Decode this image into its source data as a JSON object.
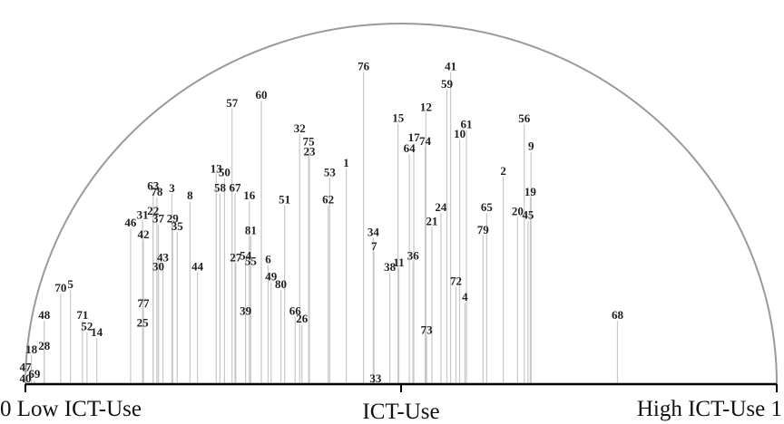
{
  "chart_data": {
    "type": "semicircle-stem",
    "title": "",
    "x_axis": {
      "left_label": "0 Low ICT-Use",
      "center_label": "ICT-Use",
      "right_label": "High ICT-Use 1",
      "min": 0,
      "max": 1
    },
    "y_axis": {
      "min": 0,
      "max": 1
    },
    "colors": {
      "stem": "#c8c8c8",
      "arc": "#9a9a9a",
      "axis": "#000000",
      "label": "#222222"
    },
    "points": [
      {
        "id": "40",
        "x": 0.0,
        "y": 0.0
      },
      {
        "id": "47",
        "x": 0.0,
        "y": 0.032
      },
      {
        "id": "69",
        "x": 0.012,
        "y": 0.012
      },
      {
        "id": "18",
        "x": 0.008,
        "y": 0.08
      },
      {
        "id": "28",
        "x": 0.025,
        "y": 0.09
      },
      {
        "id": "48",
        "x": 0.025,
        "y": 0.176
      },
      {
        "id": "70",
        "x": 0.047,
        "y": 0.251
      },
      {
        "id": "5",
        "x": 0.06,
        "y": 0.261
      },
      {
        "id": "71",
        "x": 0.076,
        "y": 0.176
      },
      {
        "id": "52",
        "x": 0.082,
        "y": 0.144
      },
      {
        "id": "14",
        "x": 0.095,
        "y": 0.128
      },
      {
        "id": "46",
        "x": 0.14,
        "y": 0.432
      },
      {
        "id": "31",
        "x": 0.156,
        "y": 0.454
      },
      {
        "id": "42",
        "x": 0.157,
        "y": 0.4
      },
      {
        "id": "77",
        "x": 0.157,
        "y": 0.208
      },
      {
        "id": "25",
        "x": 0.156,
        "y": 0.155
      },
      {
        "id": "22",
        "x": 0.17,
        "y": 0.465
      },
      {
        "id": "63",
        "x": 0.17,
        "y": 0.534
      },
      {
        "id": "78",
        "x": 0.175,
        "y": 0.518
      },
      {
        "id": "37",
        "x": 0.177,
        "y": 0.443
      },
      {
        "id": "43",
        "x": 0.183,
        "y": 0.336
      },
      {
        "id": "30",
        "x": 0.177,
        "y": 0.31
      },
      {
        "id": "3",
        "x": 0.195,
        "y": 0.528
      },
      {
        "id": "29",
        "x": 0.196,
        "y": 0.443
      },
      {
        "id": "35",
        "x": 0.202,
        "y": 0.422
      },
      {
        "id": "8",
        "x": 0.219,
        "y": 0.507
      },
      {
        "id": "44",
        "x": 0.229,
        "y": 0.31
      },
      {
        "id": "13",
        "x": 0.254,
        "y": 0.582
      },
      {
        "id": "58",
        "x": 0.259,
        "y": 0.529
      },
      {
        "id": "50",
        "x": 0.265,
        "y": 0.571
      },
      {
        "id": "57",
        "x": 0.275,
        "y": 0.764
      },
      {
        "id": "67",
        "x": 0.279,
        "y": 0.529
      },
      {
        "id": "27",
        "x": 0.28,
        "y": 0.336
      },
      {
        "id": "54",
        "x": 0.293,
        "y": 0.341
      },
      {
        "id": "39",
        "x": 0.293,
        "y": 0.187
      },
      {
        "id": "16",
        "x": 0.298,
        "y": 0.507
      },
      {
        "id": "81",
        "x": 0.3,
        "y": 0.411
      },
      {
        "id": "55",
        "x": 0.3,
        "y": 0.325
      },
      {
        "id": "60",
        "x": 0.314,
        "y": 0.786
      },
      {
        "id": "6",
        "x": 0.323,
        "y": 0.33
      },
      {
        "id": "49",
        "x": 0.327,
        "y": 0.283
      },
      {
        "id": "80",
        "x": 0.34,
        "y": 0.261
      },
      {
        "id": "51",
        "x": 0.345,
        "y": 0.496
      },
      {
        "id": "66",
        "x": 0.359,
        "y": 0.187
      },
      {
        "id": "26",
        "x": 0.368,
        "y": 0.166
      },
      {
        "id": "32",
        "x": 0.365,
        "y": 0.694
      },
      {
        "id": "75",
        "x": 0.377,
        "y": 0.657
      },
      {
        "id": "23",
        "x": 0.378,
        "y": 0.63
      },
      {
        "id": "53",
        "x": 0.405,
        "y": 0.571
      },
      {
        "id": "62",
        "x": 0.403,
        "y": 0.496
      },
      {
        "id": "1",
        "x": 0.427,
        "y": 0.598
      },
      {
        "id": "76",
        "x": 0.45,
        "y": 0.866
      },
      {
        "id": "34",
        "x": 0.463,
        "y": 0.406
      },
      {
        "id": "7",
        "x": 0.464,
        "y": 0.367
      },
      {
        "id": "33",
        "x": 0.466,
        "y": 0.0
      },
      {
        "id": "38",
        "x": 0.485,
        "y": 0.309
      },
      {
        "id": "11",
        "x": 0.497,
        "y": 0.322
      },
      {
        "id": "15",
        "x": 0.496,
        "y": 0.722
      },
      {
        "id": "64",
        "x": 0.511,
        "y": 0.638
      },
      {
        "id": "17",
        "x": 0.517,
        "y": 0.668
      },
      {
        "id": "36",
        "x": 0.516,
        "y": 0.34
      },
      {
        "id": "74",
        "x": 0.532,
        "y": 0.658
      },
      {
        "id": "73",
        "x": 0.534,
        "y": 0.134
      },
      {
        "id": "12",
        "x": 0.533,
        "y": 0.753
      },
      {
        "id": "21",
        "x": 0.541,
        "y": 0.436
      },
      {
        "id": "24",
        "x": 0.553,
        "y": 0.475
      },
      {
        "id": "59",
        "x": 0.561,
        "y": 0.817
      },
      {
        "id": "41",
        "x": 0.566,
        "y": 0.866
      },
      {
        "id": "72",
        "x": 0.573,
        "y": 0.27
      },
      {
        "id": "10",
        "x": 0.578,
        "y": 0.678
      },
      {
        "id": "61",
        "x": 0.587,
        "y": 0.705
      },
      {
        "id": "4",
        "x": 0.585,
        "y": 0.226
      },
      {
        "id": "79",
        "x": 0.609,
        "y": 0.412
      },
      {
        "id": "65",
        "x": 0.614,
        "y": 0.475
      },
      {
        "id": "2",
        "x": 0.636,
        "y": 0.575
      },
      {
        "id": "20",
        "x": 0.655,
        "y": 0.464
      },
      {
        "id": "56",
        "x": 0.664,
        "y": 0.721
      },
      {
        "id": "45",
        "x": 0.669,
        "y": 0.453
      },
      {
        "id": "19",
        "x": 0.672,
        "y": 0.518
      },
      {
        "id": "9",
        "x": 0.673,
        "y": 0.644
      },
      {
        "id": "68",
        "x": 0.788,
        "y": 0.176
      }
    ]
  }
}
